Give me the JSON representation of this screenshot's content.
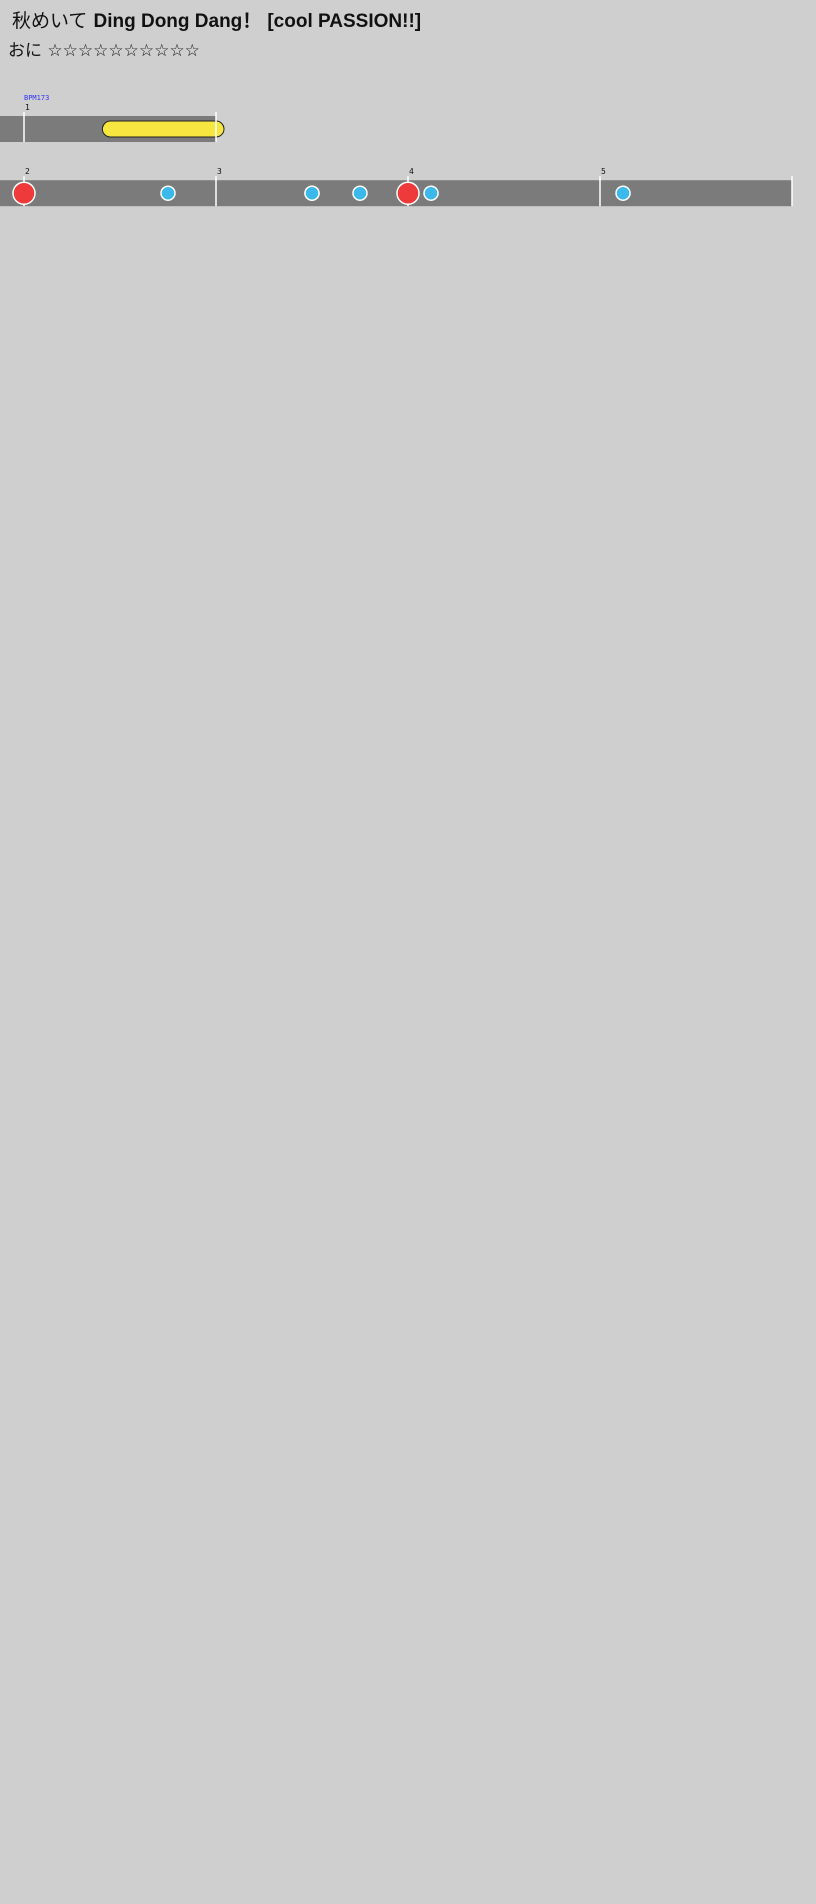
{
  "header": {
    "title_jp": "秋めいて",
    "title_en": "Ding Dong Dang！",
    "subtitle": "[cool PASSION!!]",
    "difficulty_label": "おに",
    "stars": "☆☆☆☆☆☆☆☆☆☆"
  },
  "colors": {
    "background": "#cfcfcf",
    "lane": "#7b7b7b",
    "gogo": "#ffc2c2",
    "don": "#ee3a3a",
    "ka": "#3bb9ea",
    "roll": "#f7e640",
    "balloon": "#f5b31a",
    "bpm_text": "#3333ff",
    "hs_text": "#e02020"
  },
  "rows": [
    {
      "bars": [
        {
          "n": "1",
          "notes": [
            {
              "t": "R",
              "p": 0.45,
              "q": 1.0
            }
          ]
        }
      ],
      "labels": [
        "BPM173"
      ],
      "gogo": false
    },
    {
      "bars": [
        {
          "n": "2",
          "notes": [
            {
              "t": "D",
              "p": 0.0,
              "s": 1
            },
            {
              "t": "K",
              "p": 0.75
            }
          ]
        },
        {
          "n": "3",
          "notes": [
            {
              "t": "d",
              "p": 0.5
            },
            {
              "t": "K",
              "p": 0.5
            },
            {
              "t": "K",
              "p": 0.75
            }
          ]
        },
        {
          "n": "4",
          "notes": [
            {
              "t": "D",
              "p": 0.0,
              "s": 1
            },
            {
              "t": "K",
              "p": 0.12
            }
          ]
        },
        {
          "n": "5",
          "notes": [
            {
              "t": "K",
              "p": 0.12
            }
          ]
        }
      ],
      "labels": [],
      "gogo": false
    }
  ]
}
